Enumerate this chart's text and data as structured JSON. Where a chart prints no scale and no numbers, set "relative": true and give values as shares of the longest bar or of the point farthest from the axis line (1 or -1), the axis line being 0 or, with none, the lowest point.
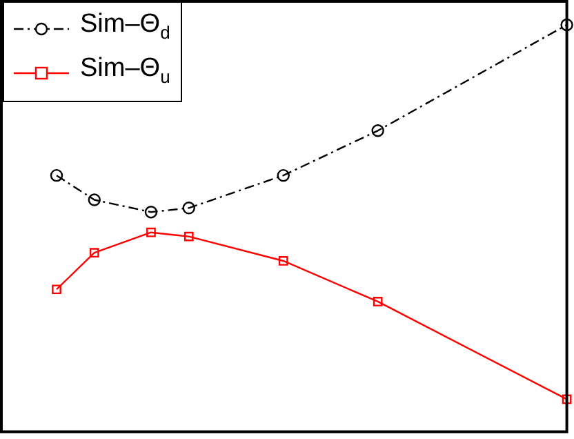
{
  "chart_data": {
    "type": "line",
    "relative": true,
    "categories": [
      null,
      null,
      null,
      null,
      null,
      null,
      null,
      null,
      null,
      null,
      null,
      null,
      null,
      null,
      null,
      null,
      null,
      null,
      null,
      null,
      null,
      null,
      null,
      null,
      null,
      null,
      null,
      null
    ],
    "legend": "top left",
    "series": [
      {
        "name": "Sim–Θ$_{d}$",
        "color": "#000000",
        "marker": "circle",
        "line_style": "dashed",
        "values": [
          0.63,
          null,
          0.57,
          null,
          null,
          0.54,
          null,
          0.55,
          null,
          null,
          null,
          null,
          0.63,
          null,
          null,
          null,
          null,
          0.74,
          null,
          null,
          null,
          null,
          null,
          null,
          null,
          null,
          null,
          1
        ]
      },
      {
        "name": "Sim–Θ$_{u}$",
        "color": "#ff0000",
        "marker": "square",
        "line_style": "solid",
        "values": [
          0.35,
          null,
          0.44,
          null,
          null,
          0.49,
          null,
          0.48,
          null,
          null,
          null,
          null,
          0.42,
          null,
          null,
          null,
          null,
          0.32,
          null,
          null,
          null,
          null,
          null,
          null,
          null,
          null,
          null,
          0.08
        ]
      }
    ]
  }
}
